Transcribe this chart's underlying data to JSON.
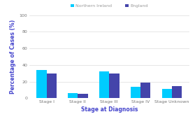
{
  "categories": [
    "Stage I",
    "Stage II",
    "Stage III",
    "Stage IV",
    "Stage Unknown"
  ],
  "northern_ireland": [
    34,
    6,
    32,
    14,
    11
  ],
  "england": [
    30,
    5,
    30,
    19,
    15
  ],
  "ni_color": "#00ccff",
  "eng_color": "#4444aa",
  "ni_label": "Northern Ireland",
  "eng_label": "England",
  "xlabel": "Stage at Diagnosis",
  "ylabel": "Percentage of Cases (%)",
  "ylim": [
    0,
    100
  ],
  "yticks": [
    0,
    20,
    40,
    60,
    80,
    100
  ],
  "bar_width": 0.32,
  "xlabel_color": "#4444cc",
  "ylabel_color": "#4444cc",
  "background_color": "#ffffff",
  "grid_color": "#dddddd",
  "tick_fontsize": 4.5,
  "label_fontsize": 5.5,
  "legend_fontsize": 4.5
}
